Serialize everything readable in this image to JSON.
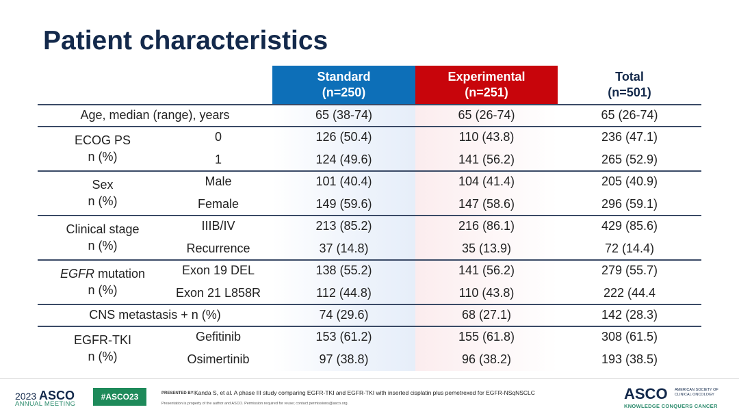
{
  "title": "Patient characteristics",
  "header": {
    "standard": [
      "Standard",
      "(n=250)"
    ],
    "experimental": [
      "Experimental",
      "(n=251)"
    ],
    "total": [
      "Total",
      "(n=501)"
    ]
  },
  "colors": {
    "standard": "#0d6fb8",
    "experimental": "#c8050b",
    "title": "#13294b"
  },
  "groups": [
    {
      "label": [
        "Age, median (range), years"
      ],
      "span": true,
      "rows": [
        {
          "sub": "",
          "std": "65 (38-74)",
          "exp": "65 (26-74)",
          "tot": "65 (26-74)"
        }
      ]
    },
    {
      "label": [
        "ECOG PS",
        "n (%)"
      ],
      "rows": [
        {
          "sub": "0",
          "std": "126 (50.4)",
          "exp": "110 (43.8)",
          "tot": "236 (47.1)"
        },
        {
          "sub": "1",
          "std": "124 (49.6)",
          "exp": "141 (56.2)",
          "tot": "265 (52.9)"
        }
      ]
    },
    {
      "label": [
        "Sex",
        "n (%)"
      ],
      "rows": [
        {
          "sub": "Male",
          "std": "101 (40.4)",
          "exp": "104 (41.4)",
          "tot": "205 (40.9)"
        },
        {
          "sub": "Female",
          "std": "149 (59.6)",
          "exp": "147 (58.6)",
          "tot": "296 (59.1)"
        }
      ]
    },
    {
      "label": [
        "Clinical stage",
        "n (%)"
      ],
      "rows": [
        {
          "sub": "IIIB/IV",
          "std": "213 (85.2)",
          "exp": "216 (86.1)",
          "tot": "429 (85.6)"
        },
        {
          "sub": "Recurrence",
          "std": "37 (14.8)",
          "exp": "35 (13.9)",
          "tot": "72 (14.4)"
        }
      ]
    },
    {
      "label": [
        "EGFR mutation",
        "n (%)"
      ],
      "italic_prefix": "EGFR",
      "rows": [
        {
          "sub": "Exon 19 DEL",
          "std": "138 (55.2)",
          "exp": "141 (56.2)",
          "tot": "279 (55.7)"
        },
        {
          "sub": "Exon 21 L858R",
          "std": "112 (44.8)",
          "exp": "110 (43.8)",
          "tot": "222 (44.4"
        }
      ]
    },
    {
      "label": [
        "CNS metastasis + n (%)"
      ],
      "span": true,
      "rows": [
        {
          "sub": "",
          "std": "74 (29.6)",
          "exp": "68 (27.1)",
          "tot": "142 (28.3)"
        }
      ]
    },
    {
      "label": [
        "EGFR-TKI",
        "n (%)"
      ],
      "rows": [
        {
          "sub": "Gefitinib",
          "std": "153 (61.2)",
          "exp": "155 (61.8)",
          "tot": "308 (61.5)"
        },
        {
          "sub": "Osimertinib",
          "std": "97 (38.8)",
          "exp": "96 (38.2)",
          "tot": "193 (38.5)"
        }
      ]
    }
  ],
  "footer": {
    "year": "2023",
    "asco": "ASCO",
    "annual": "ANNUAL MEETING",
    "hashtag": "#ASCO23",
    "presented_by": "PRESENTED BY:",
    "citation": "Kanda S, et al. A phase III study comparing EGFR-TKI and EGFR-TKI with inserted cisplatin plus pemetrexed for EGFR-NSqNSCLC",
    "disclaimer": "Presentation is property of the author and ASCO. Permission required for reuse; contact permissions@asco.org.",
    "logo": "ASCO",
    "society": [
      "AMERICAN SOCIETY OF",
      "CLINICAL ONCOLOGY"
    ],
    "tagline": "KNOWLEDGE CONQUERS CANCER"
  }
}
